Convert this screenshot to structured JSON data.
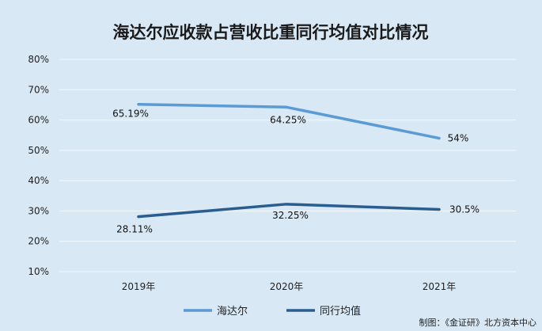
{
  "chart_data": {
    "type": "line",
    "title": "海达尔应收款占营收比重同行均值对比情况",
    "categories": [
      "2019年",
      "2020年",
      "2021年"
    ],
    "series": [
      {
        "name": "海达尔",
        "values": [
          65.19,
          64.25,
          54
        ],
        "labels": [
          "65.19%",
          "64.25%",
          "54%"
        ],
        "color": "#5b9bd5"
      },
      {
        "name": "同行均值",
        "values": [
          28.11,
          32.25,
          30.5
        ],
        "labels": [
          "28.11%",
          "32.25%",
          "30.5%"
        ],
        "color": "#2a5d8f"
      }
    ],
    "ylim": [
      10,
      80
    ],
    "yticks": [
      "10%",
      "20%",
      "30%",
      "40%",
      "50%",
      "60%",
      "70%",
      "80%"
    ],
    "grid": true,
    "legend_position": "bottom"
  },
  "footer": {
    "credit": "制图：《金证研》北方资本中心"
  }
}
